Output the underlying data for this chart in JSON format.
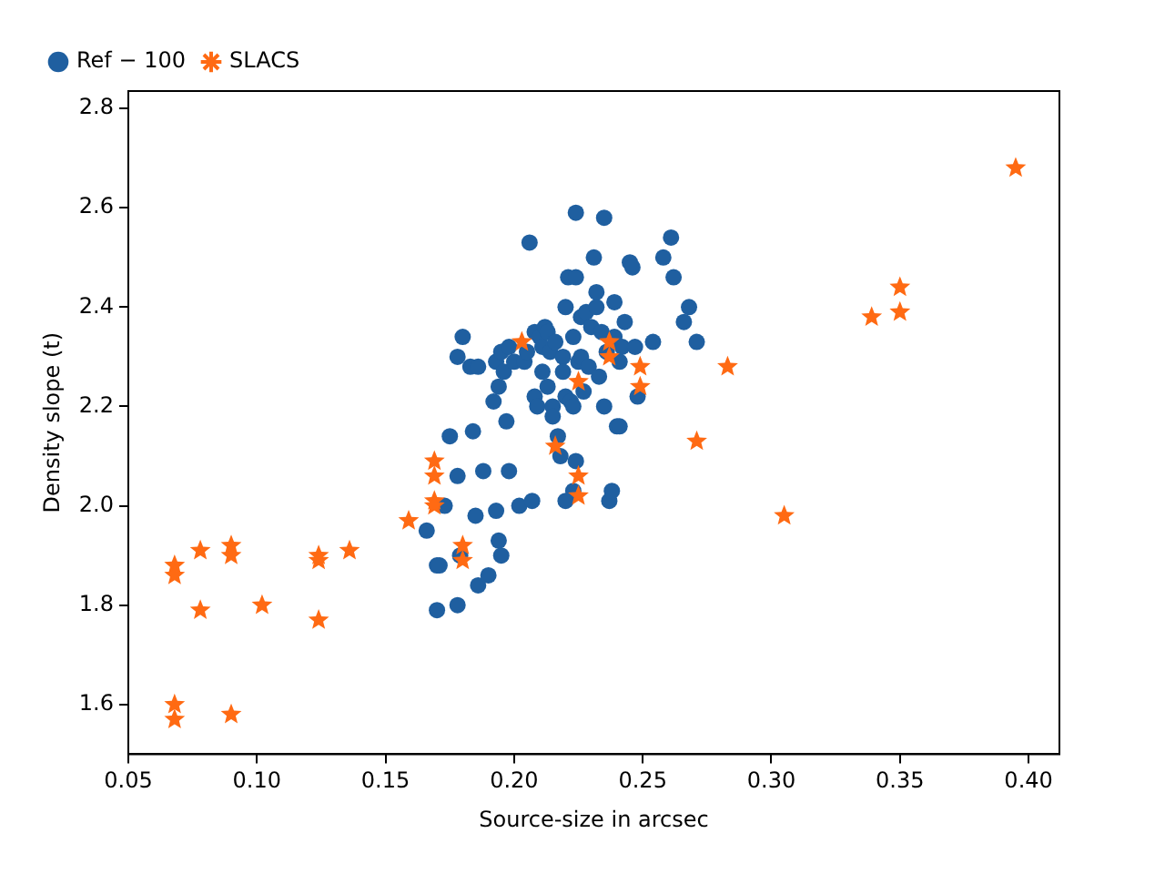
{
  "chart_data": {
    "type": "scatter",
    "xlabel": "Source-size in arcsec",
    "ylabel": "Density slope (t)",
    "xlim": [
      0.05,
      0.412
    ],
    "ylim": [
      1.5,
      2.835
    ],
    "xticks": [
      {
        "value": 0.05,
        "label": "0.05"
      },
      {
        "value": 0.1,
        "label": "0.10"
      },
      {
        "value": 0.15,
        "label": "0.15"
      },
      {
        "value": 0.2,
        "label": "0.20"
      },
      {
        "value": 0.25,
        "label": "0.25"
      },
      {
        "value": 0.3,
        "label": "0.30"
      },
      {
        "value": 0.35,
        "label": "0.35"
      },
      {
        "value": 0.4,
        "label": "0.40"
      }
    ],
    "yticks": [
      1.6,
      1.8,
      {
        "value": 2.0,
        "label": "2.0"
      },
      2.2,
      2.4,
      2.6,
      2.8
    ],
    "grid": false,
    "legend": "top left",
    "series": [
      {
        "name": "Ref − 100",
        "color": "#1f5fa0",
        "marker": "circle",
        "x": [
          0.166,
          0.17,
          0.171,
          0.17,
          0.173,
          0.175,
          0.178,
          0.178,
          0.178,
          0.18,
          0.179,
          0.183,
          0.184,
          0.185,
          0.186,
          0.186,
          0.188,
          0.19,
          0.192,
          0.193,
          0.193,
          0.194,
          0.195,
          0.195,
          0.194,
          0.196,
          0.197,
          0.198,
          0.198,
          0.2,
          0.202,
          0.204,
          0.205,
          0.206,
          0.207,
          0.208,
          0.208,
          0.209,
          0.21,
          0.211,
          0.211,
          0.212,
          0.213,
          0.213,
          0.214,
          0.215,
          0.215,
          0.216,
          0.217,
          0.218,
          0.219,
          0.219,
          0.22,
          0.22,
          0.22,
          0.221,
          0.222,
          0.223,
          0.223,
          0.223,
          0.224,
          0.224,
          0.224,
          0.225,
          0.226,
          0.226,
          0.227,
          0.228,
          0.229,
          0.23,
          0.231,
          0.232,
          0.232,
          0.233,
          0.234,
          0.235,
          0.235,
          0.236,
          0.237,
          0.238,
          0.239,
          0.239,
          0.24,
          0.241,
          0.241,
          0.242,
          0.243,
          0.245,
          0.246,
          0.247,
          0.248,
          0.254,
          0.258,
          0.261,
          0.262,
          0.266,
          0.268,
          0.271
        ],
        "values": [
          1.95,
          1.88,
          1.88,
          1.79,
          2.0,
          2.14,
          2.06,
          1.8,
          2.3,
          2.34,
          1.9,
          2.28,
          2.15,
          1.98,
          1.84,
          2.28,
          2.07,
          1.86,
          2.21,
          1.99,
          2.29,
          1.93,
          1.9,
          2.31,
          2.24,
          2.27,
          2.17,
          2.07,
          2.32,
          2.29,
          2.0,
          2.29,
          2.31,
          2.53,
          2.01,
          2.22,
          2.35,
          2.2,
          2.34,
          2.27,
          2.32,
          2.36,
          2.24,
          2.35,
          2.31,
          2.2,
          2.18,
          2.33,
          2.14,
          2.1,
          2.3,
          2.27,
          2.22,
          2.4,
          2.01,
          2.46,
          2.21,
          2.34,
          2.2,
          2.03,
          2.59,
          2.46,
          2.09,
          2.29,
          2.38,
          2.3,
          2.23,
          2.39,
          2.28,
          2.36,
          2.5,
          2.4,
          2.43,
          2.26,
          2.35,
          2.58,
          2.2,
          2.31,
          2.01,
          2.03,
          2.34,
          2.41,
          2.16,
          2.16,
          2.29,
          2.32,
          2.37,
          2.49,
          2.48,
          2.32,
          2.22,
          2.33,
          2.5,
          2.54,
          2.46,
          2.37,
          2.4,
          2.33
        ]
      },
      {
        "name": "SLACS",
        "color": "#ff6a13",
        "marker": "star",
        "x": [
          0.068,
          0.068,
          0.068,
          0.068,
          0.078,
          0.078,
          0.09,
          0.09,
          0.09,
          0.102,
          0.124,
          0.124,
          0.124,
          0.136,
          0.159,
          0.169,
          0.169,
          0.169,
          0.169,
          0.18,
          0.18,
          0.203,
          0.216,
          0.225,
          0.225,
          0.225,
          0.237,
          0.237,
          0.249,
          0.249,
          0.271,
          0.283,
          0.305,
          0.339,
          0.35,
          0.35,
          0.395
        ],
        "values": [
          1.88,
          1.86,
          1.6,
          1.57,
          1.91,
          1.79,
          1.92,
          1.9,
          1.58,
          1.8,
          1.9,
          1.89,
          1.77,
          1.91,
          1.97,
          2.09,
          2.06,
          2.01,
          2.0,
          1.92,
          1.89,
          2.33,
          2.12,
          2.25,
          2.06,
          2.02,
          2.33,
          2.3,
          2.28,
          2.24,
          2.13,
          2.28,
          1.98,
          2.38,
          2.44,
          2.39,
          2.68
        ]
      }
    ]
  }
}
